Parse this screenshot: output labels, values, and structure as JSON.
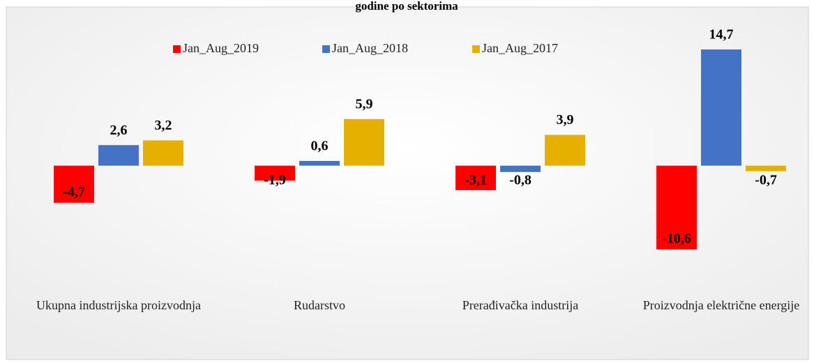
{
  "chart_data": {
    "type": "bar",
    "title": "godine po sektorima",
    "categories": [
      "Ukupna industrijska proizvodnja",
      "Rudarstvo",
      "Prerađivačka industrija",
      "Proizvodnja električne energije"
    ],
    "legend": "top",
    "series": [
      {
        "name": "Jan_Aug_2019",
        "color": "#ff0000",
        "values": [
          -4.7,
          -1.9,
          -3.1,
          -10.6
        ],
        "value_labels": [
          "-4,7",
          "-1,9",
          "-3,1",
          "-10,6"
        ]
      },
      {
        "name": "Jan_Aug_2018",
        "color": "#4472c4",
        "values": [
          2.6,
          0.6,
          -0.8,
          14.7
        ],
        "value_labels": [
          "2,6",
          "0,6",
          "-0,8",
          "14,7"
        ]
      },
      {
        "name": "Jan_Aug_2017",
        "color": "#e6b000",
        "values": [
          3.2,
          5.9,
          3.9,
          -0.7
        ],
        "value_labels": [
          "3,2",
          "5,9",
          "3,9",
          "-0,7"
        ]
      }
    ]
  }
}
